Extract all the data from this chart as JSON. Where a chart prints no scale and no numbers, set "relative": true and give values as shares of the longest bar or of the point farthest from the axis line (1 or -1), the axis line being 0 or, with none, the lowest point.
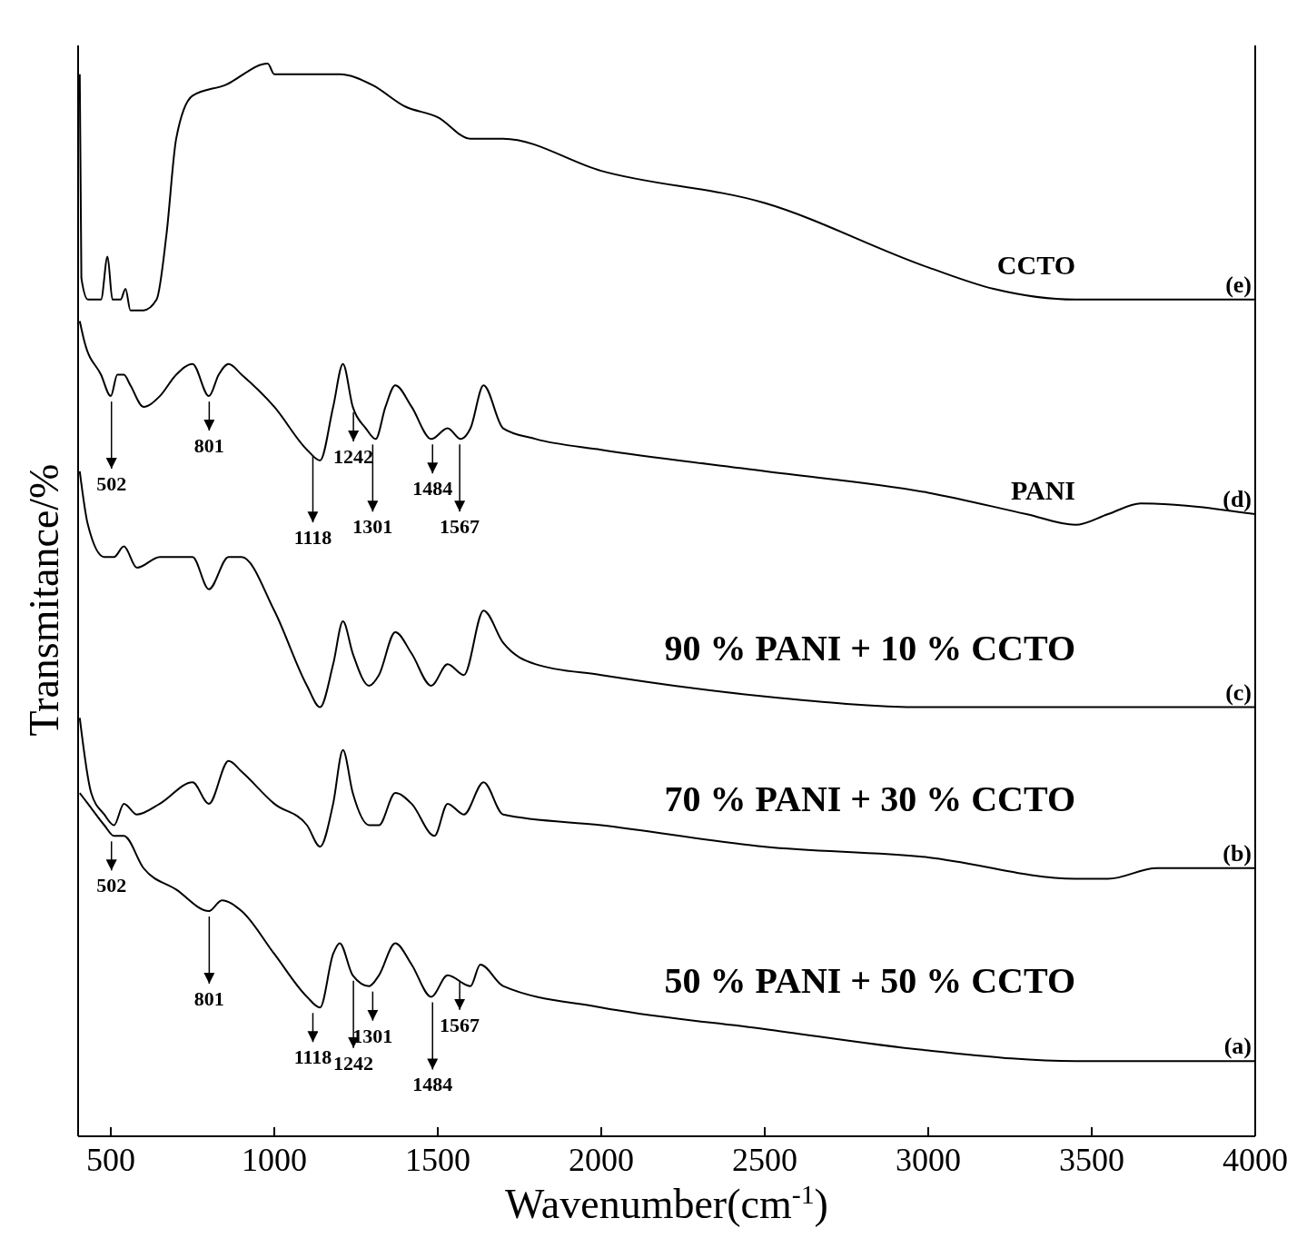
{
  "chart_data": {
    "type": "line",
    "relative": true,
    "xlabel": "Wavenumber(cm$^{-1}$)",
    "ylabel": "Transmitance/%",
    "xlim": [
      400,
      4000
    ],
    "xticks": [
      500,
      1000,
      1500,
      2000,
      2500,
      3000,
      3500,
      4000
    ],
    "series": [
      {
        "name": "CCTO",
        "color": "#000000",
        "x": [
          405,
          410,
          430,
          470,
          490,
          505,
          530,
          545,
          560,
          600,
          640,
          670,
          700,
          750,
          850,
          980,
          1000,
          1100,
          1200,
          1300,
          1400,
          1500,
          1600,
          1700,
          2000,
          2500,
          3000,
          3200,
          3450,
          3600,
          3700,
          4000
        ],
        "values": [
          0.99,
          0.8,
          0.78,
          0.78,
          0.82,
          0.78,
          0.78,
          0.79,
          0.77,
          0.77,
          0.78,
          0.84,
          0.93,
          0.97,
          0.98,
          1.0,
          0.99,
          0.99,
          0.99,
          0.98,
          0.96,
          0.95,
          0.93,
          0.93,
          0.9,
          0.87,
          0.81,
          0.79,
          0.78,
          0.78,
          0.78,
          0.78
        ]
      },
      {
        "name": "PANI",
        "color": "#000000",
        "x": [
          405,
          420,
          470,
          500,
          520,
          540,
          560,
          600,
          650,
          700,
          750,
          800,
          830,
          860,
          900,
          1000,
          1100,
          1140,
          1180,
          1210,
          1240,
          1280,
          1310,
          1340,
          1370,
          1420,
          1480,
          1530,
          1570,
          1600,
          1640,
          1700,
          1800,
          2000,
          2500,
          3000,
          3300,
          3450,
          3550,
          3650,
          4000
        ],
        "values": [
          0.76,
          0.74,
          0.71,
          0.69,
          0.71,
          0.71,
          0.7,
          0.68,
          0.69,
          0.71,
          0.72,
          0.69,
          0.71,
          0.72,
          0.71,
          0.68,
          0.64,
          0.63,
          0.68,
          0.72,
          0.68,
          0.66,
          0.65,
          0.68,
          0.7,
          0.68,
          0.65,
          0.66,
          0.65,
          0.66,
          0.7,
          0.66,
          0.65,
          0.64,
          0.62,
          0.6,
          0.58,
          0.57,
          0.58,
          0.59,
          0.58
        ]
      },
      {
        "name": "90 % PANI + 10 % CCTO",
        "color": "#000000",
        "x": [
          405,
          430,
          480,
          510,
          540,
          580,
          650,
          750,
          800,
          860,
          900,
          1000,
          1100,
          1140,
          1180,
          1210,
          1240,
          1290,
          1320,
          1370,
          1420,
          1480,
          1530,
          1580,
          1640,
          1700,
          1800,
          2000,
          2500,
          3000,
          3500,
          4000
        ],
        "values": [
          0.62,
          0.57,
          0.54,
          0.54,
          0.55,
          0.53,
          0.54,
          0.54,
          0.51,
          0.54,
          0.54,
          0.49,
          0.42,
          0.4,
          0.44,
          0.48,
          0.45,
          0.42,
          0.43,
          0.47,
          0.45,
          0.42,
          0.44,
          0.43,
          0.49,
          0.46,
          0.44,
          0.43,
          0.41,
          0.4,
          0.4,
          0.4
        ]
      },
      {
        "name": "70 % PANI + 30 % CCTO",
        "color": "#000000",
        "x": [
          405,
          440,
          480,
          510,
          540,
          580,
          650,
          750,
          800,
          860,
          900,
          1000,
          1100,
          1140,
          1180,
          1210,
          1240,
          1290,
          1320,
          1370,
          1420,
          1490,
          1530,
          1580,
          1640,
          1700,
          2000,
          2500,
          3000,
          3450,
          3550,
          3700,
          4000
        ],
        "values": [
          0.39,
          0.32,
          0.3,
          0.29,
          0.31,
          0.3,
          0.31,
          0.33,
          0.31,
          0.35,
          0.34,
          0.31,
          0.29,
          0.27,
          0.31,
          0.36,
          0.32,
          0.29,
          0.29,
          0.32,
          0.31,
          0.28,
          0.31,
          0.3,
          0.33,
          0.3,
          0.29,
          0.27,
          0.26,
          0.24,
          0.24,
          0.25,
          0.25
        ]
      },
      {
        "name": "50 % PANI + 50 % CCTO",
        "color": "#000000",
        "x": [
          405,
          430,
          480,
          510,
          540,
          600,
          700,
          800,
          840,
          900,
          1000,
          1100,
          1140,
          1180,
          1200,
          1240,
          1290,
          1320,
          1370,
          1420,
          1480,
          1530,
          1600,
          1630,
          1700,
          2000,
          2500,
          3000,
          3450,
          3700,
          4000
        ],
        "values": [
          0.32,
          0.31,
          0.29,
          0.28,
          0.28,
          0.25,
          0.23,
          0.21,
          0.22,
          0.21,
          0.17,
          0.13,
          0.12,
          0.17,
          0.18,
          0.15,
          0.14,
          0.15,
          0.18,
          0.16,
          0.13,
          0.15,
          0.14,
          0.16,
          0.14,
          0.12,
          0.1,
          0.08,
          0.07,
          0.07,
          0.07
        ]
      }
    ],
    "annotations": [
      {
        "text": "(e)",
        "x": 4000,
        "y": 0.78
      },
      {
        "text": "(d)",
        "x": 4000,
        "y": 0.58
      },
      {
        "text": "(c)",
        "x": 4000,
        "y": 0.4
      },
      {
        "text": "(b)",
        "x": 4000,
        "y": 0.25
      },
      {
        "text": "(a)",
        "x": 4000,
        "y": 0.07
      },
      {
        "text": "502",
        "x": 502,
        "y": 0.69
      },
      {
        "text": "801",
        "x": 801,
        "y": 0.69
      },
      {
        "text": "1118",
        "x": 1118,
        "y": 0.64
      },
      {
        "text": "1242",
        "x": 1242,
        "y": 0.68
      },
      {
        "text": "1301",
        "x": 1301,
        "y": 0.65
      },
      {
        "text": "1484",
        "x": 1484,
        "y": 0.65
      },
      {
        "text": "1567",
        "x": 1567,
        "y": 0.65
      },
      {
        "text": "502",
        "x": 502,
        "y": 0.28
      },
      {
        "text": "801",
        "x": 801,
        "y": 0.21
      },
      {
        "text": "1118",
        "x": 1118,
        "y": 0.12
      },
      {
        "text": "1242",
        "x": 1242,
        "y": 0.15
      },
      {
        "text": "1301",
        "x": 1301,
        "y": 0.14
      },
      {
        "text": "1484",
        "x": 1484,
        "y": 0.13
      },
      {
        "text": "1567",
        "x": 1567,
        "y": 0.15
      }
    ]
  }
}
